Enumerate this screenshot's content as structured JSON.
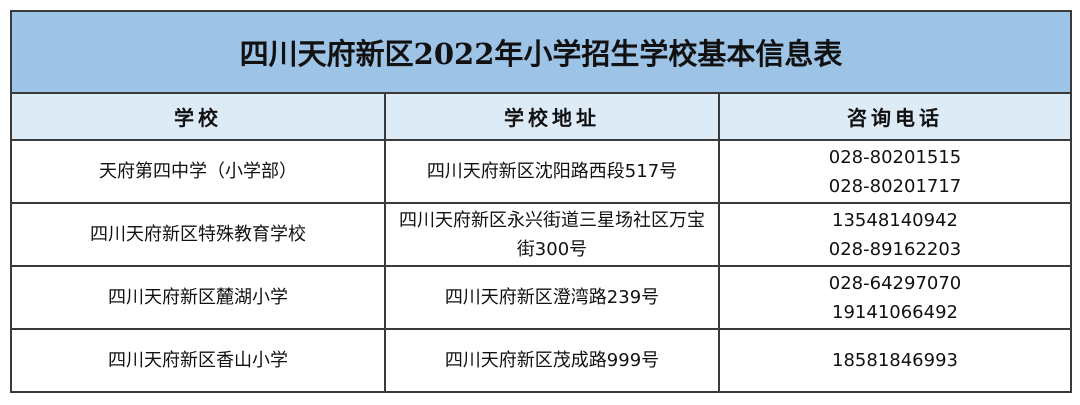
{
  "title": "四川天府新区2022年小学招生学校基本信息表",
  "headers": [
    "学校",
    "学校地址",
    "咨询电话"
  ],
  "rows": [
    {
      "school": "天府第四中学（小学部）",
      "address": "四川天府新区沈阳路西段517号",
      "phones": [
        "028-80201515",
        "028-80201717"
      ]
    },
    {
      "school": "四川天府新区特殊教育学校",
      "address": "四川天府新区永兴街道三星场社区万宝街300号",
      "phones": [
        "13548140942",
        "028-89162203"
      ]
    },
    {
      "school": "四川天府新区麓湖小学",
      "address": "四川天府新区澄湾路239号",
      "phones": [
        "028-64297070",
        "19141066492"
      ]
    },
    {
      "school": "四川天府新区香山小学",
      "address": "四川天府新区茂成路999号",
      "phones": [
        "18581846993"
      ]
    }
  ],
  "colors": {
    "title_bg": "#9dc3e6",
    "header_bg": "#ddebf7",
    "border": "#3a3a3a"
  }
}
